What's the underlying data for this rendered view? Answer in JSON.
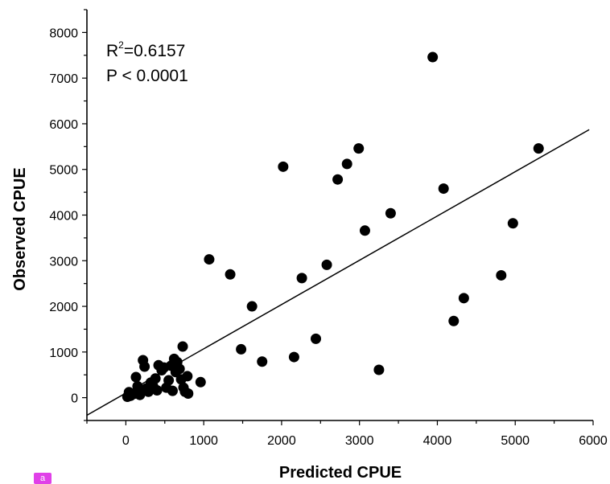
{
  "panel_tag": "a",
  "chart_data": {
    "type": "scatter",
    "xlabel": "Predicted CPUE",
    "ylabel": "Observed CPUE",
    "xlim": [
      -500,
      6000
    ],
    "ylim": [
      -500,
      8500
    ],
    "xticks": [
      0,
      1000,
      2000,
      3000,
      4000,
      5000,
      6000
    ],
    "yticks": [
      0,
      1000,
      2000,
      3000,
      4000,
      5000,
      6000,
      7000,
      8000
    ],
    "annotations": {
      "r2_prefix": "R",
      "r2_exponent": "2",
      "r2_value": "=0.6157",
      "p_value": "P < 0.0001"
    },
    "grid": false,
    "points": [
      {
        "x": 20,
        "y": 20
      },
      {
        "x": 40,
        "y": 120
      },
      {
        "x": 60,
        "y": 40
      },
      {
        "x": 100,
        "y": 80
      },
      {
        "x": 130,
        "y": 450
      },
      {
        "x": 150,
        "y": 250
      },
      {
        "x": 180,
        "y": 60
      },
      {
        "x": 200,
        "y": 150
      },
      {
        "x": 220,
        "y": 820
      },
      {
        "x": 240,
        "y": 680
      },
      {
        "x": 260,
        "y": 200
      },
      {
        "x": 290,
        "y": 130
      },
      {
        "x": 320,
        "y": 330
      },
      {
        "x": 350,
        "y": 250
      },
      {
        "x": 380,
        "y": 420
      },
      {
        "x": 400,
        "y": 160
      },
      {
        "x": 420,
        "y": 710
      },
      {
        "x": 460,
        "y": 600
      },
      {
        "x": 490,
        "y": 660
      },
      {
        "x": 520,
        "y": 220
      },
      {
        "x": 550,
        "y": 380
      },
      {
        "x": 580,
        "y": 700
      },
      {
        "x": 600,
        "y": 150
      },
      {
        "x": 620,
        "y": 850
      },
      {
        "x": 640,
        "y": 560
      },
      {
        "x": 660,
        "y": 780
      },
      {
        "x": 690,
        "y": 630
      },
      {
        "x": 710,
        "y": 400
      },
      {
        "x": 730,
        "y": 1120
      },
      {
        "x": 740,
        "y": 220
      },
      {
        "x": 760,
        "y": 130
      },
      {
        "x": 790,
        "y": 470
      },
      {
        "x": 800,
        "y": 90
      },
      {
        "x": 960,
        "y": 340
      },
      {
        "x": 1070,
        "y": 3030
      },
      {
        "x": 1340,
        "y": 2700
      },
      {
        "x": 1480,
        "y": 1060
      },
      {
        "x": 1620,
        "y": 2000
      },
      {
        "x": 1750,
        "y": 790
      },
      {
        "x": 2020,
        "y": 5060
      },
      {
        "x": 2160,
        "y": 890
      },
      {
        "x": 2260,
        "y": 2620
      },
      {
        "x": 2440,
        "y": 1290
      },
      {
        "x": 2580,
        "y": 2910
      },
      {
        "x": 2720,
        "y": 4780
      },
      {
        "x": 2840,
        "y": 5120
      },
      {
        "x": 2990,
        "y": 5460
      },
      {
        "x": 3070,
        "y": 3660
      },
      {
        "x": 3250,
        "y": 610
      },
      {
        "x": 3400,
        "y": 4040
      },
      {
        "x": 3940,
        "y": 7460
      },
      {
        "x": 4080,
        "y": 4580
      },
      {
        "x": 4210,
        "y": 1680
      },
      {
        "x": 4340,
        "y": 2180
      },
      {
        "x": 4820,
        "y": 2680
      },
      {
        "x": 4970,
        "y": 3820
      },
      {
        "x": 5300,
        "y": 5460
      }
    ],
    "fit_line": {
      "slope": 0.97,
      "intercept": 100,
      "x_start": -500,
      "x_end": 5950
    }
  }
}
